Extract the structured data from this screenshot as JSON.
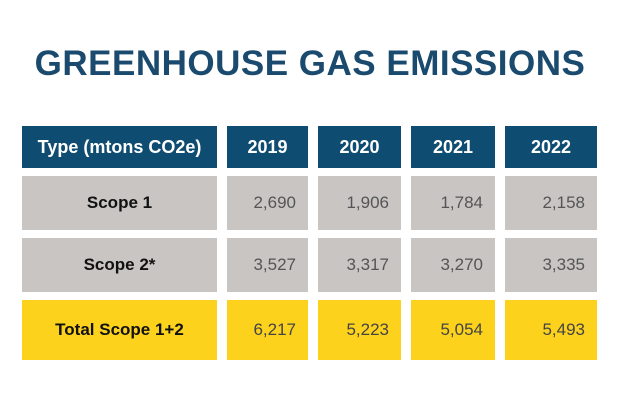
{
  "header": {
    "title": "GREENHOUSE GAS EMISSIONS"
  },
  "table": {
    "columns": [
      "Type (mtons CO2e)",
      "2019",
      "2020",
      "2021",
      "2022"
    ],
    "rows": [
      [
        "Scope 1",
        "2,690",
        "1,906",
        "1,784",
        "2,158"
      ],
      [
        "Scope 2*",
        "3,527",
        "3,317",
        "3,270",
        "3,335"
      ],
      [
        "Total Scope 1+2",
        "6,217",
        "5,223",
        "5,054",
        "5,493"
      ]
    ]
  }
}
